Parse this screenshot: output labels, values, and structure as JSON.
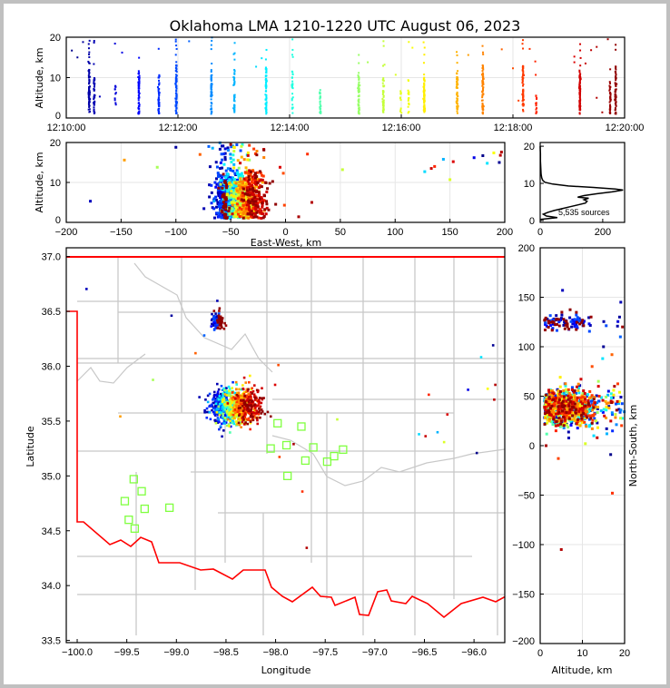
{
  "chart_data": [
    {
      "id": "time_height",
      "type": "scatter",
      "title": "Oklahoma LMA 1210-1220 UTC August 06, 2023",
      "xlabel": "",
      "ylabel": "Altitude, km",
      "xlim_minutes_after_1210": [
        0,
        10
      ],
      "ylim": [
        0,
        20
      ],
      "xticks": [
        "12:10:00",
        "12:12:00",
        "12:14:00",
        "12:16:00",
        "12:18:00",
        "12:20:00"
      ],
      "yticks": [
        "0",
        "10",
        "20"
      ],
      "color_by": "time (jet colormap)",
      "columns_t_alt_lo_alt_hi_count": [
        [
          0.41,
          1,
          12,
          70
        ],
        [
          0.5,
          1,
          10,
          40
        ],
        [
          0.88,
          2,
          8,
          12
        ],
        [
          1.3,
          1,
          12,
          55
        ],
        [
          1.66,
          1,
          11,
          45
        ],
        [
          1.97,
          1,
          14,
          70
        ],
        [
          2.6,
          1,
          11,
          55
        ],
        [
          3.01,
          1,
          12,
          40
        ],
        [
          3.58,
          1,
          13,
          60
        ],
        [
          4.05,
          1,
          12,
          30
        ],
        [
          4.55,
          1,
          7,
          30
        ],
        [
          5.24,
          1,
          11,
          55
        ],
        [
          5.68,
          1,
          10,
          50
        ],
        [
          5.99,
          1,
          7,
          12
        ],
        [
          6.13,
          1,
          7,
          18
        ],
        [
          6.41,
          1,
          11,
          60
        ],
        [
          7.0,
          1,
          11,
          60
        ],
        [
          7.46,
          1,
          13,
          70
        ],
        [
          8.18,
          1,
          13,
          60
        ],
        [
          8.42,
          1,
          6,
          15
        ],
        [
          9.2,
          1,
          12,
          75
        ],
        [
          9.74,
          1,
          9,
          35
        ],
        [
          9.84,
          1,
          13,
          60
        ]
      ]
    },
    {
      "id": "ew_height",
      "type": "scatter",
      "xlabel": "East-West, km",
      "ylabel": "Altitude, km",
      "xlim": [
        -200,
        200
      ],
      "ylim": [
        0,
        20
      ],
      "xticks": [
        "−200",
        "−150",
        "−100",
        "−50",
        "0",
        "50",
        "100",
        "150",
        "200"
      ],
      "yticks": [
        "0",
        "10",
        "20"
      ]
    },
    {
      "id": "altitude_histogram",
      "type": "line",
      "xlim": [
        0,
        270
      ],
      "ylim": [
        -0.5,
        21
      ],
      "xticks": [
        "0",
        "200"
      ],
      "yticks": [
        "0",
        "10",
        "20"
      ],
      "annotation": "5,535 sources",
      "profile_alt_km": [
        0.3,
        0.8,
        1.2,
        1.7,
        2.2,
        2.7,
        3.2,
        3.7,
        4.2,
        4.7,
        5.2,
        5.6,
        6.0,
        6.3,
        6.7,
        7.2,
        7.7,
        8.2,
        8.5,
        8.9,
        9.3,
        9.8,
        10.3,
        10.8,
        11.5,
        12.5,
        14,
        16,
        18,
        20
      ],
      "profile_counts": [
        0,
        55,
        20,
        10,
        25,
        45,
        70,
        95,
        120,
        145,
        150,
        140,
        155,
        120,
        140,
        180,
        230,
        265,
        240,
        170,
        90,
        40,
        15,
        8,
        5,
        3,
        2,
        1,
        1,
        0
      ]
    },
    {
      "id": "plan_view",
      "type": "scatter",
      "xlabel": "Longitude",
      "ylabel": "Latitude",
      "xlim": [
        -100.11,
        -95.69
      ],
      "ylim": [
        33.48,
        37.08
      ],
      "xticks": [
        "−100.0",
        "−99.5",
        "−99.0",
        "−98.5",
        "−98.0",
        "−97.5",
        "−97.0",
        "−96.5",
        "−96.0"
      ],
      "xtick_values": [
        -100,
        -99.5,
        -99,
        -98.5,
        -98,
        -97.5,
        -97,
        -96.5,
        -96
      ],
      "yticks": [
        "33.5",
        "34.0",
        "34.5",
        "35.0",
        "35.5",
        "36.0",
        "36.5",
        "37.0"
      ],
      "ytick_values": [
        33.5,
        34,
        34.5,
        35,
        35.5,
        36,
        36.5,
        37
      ],
      "stations_lon_lat": [
        [
          -97.98,
          35.48
        ],
        [
          -97.74,
          35.45
        ],
        [
          -98.05,
          35.25
        ],
        [
          -97.89,
          35.28
        ],
        [
          -97.62,
          35.26
        ],
        [
          -97.32,
          35.24
        ],
        [
          -97.41,
          35.18
        ],
        [
          -97.7,
          35.14
        ],
        [
          -97.48,
          35.13
        ],
        [
          -97.88,
          35.0
        ],
        [
          -99.43,
          34.97
        ],
        [
          -99.35,
          34.86
        ],
        [
          -99.52,
          34.77
        ],
        [
          -99.32,
          34.7
        ],
        [
          -99.07,
          34.71
        ],
        [
          -99.48,
          34.6
        ],
        [
          -99.42,
          34.52
        ]
      ],
      "station_color": "#80ff40",
      "border_color": "#ff0000",
      "county_color": "#c8c8c8"
    },
    {
      "id": "ns_height",
      "type": "scatter",
      "xlabel": "Altitude, km",
      "ylabel": "North-South, km",
      "xlim": [
        0,
        20
      ],
      "ylim": [
        -200,
        200
      ],
      "xticks": [
        "0",
        "10",
        "20"
      ],
      "yticks": [
        "200",
        "150",
        "100",
        "50",
        "0",
        "−50",
        "−100",
        "−150",
        "−200"
      ]
    }
  ],
  "outliers_t_alt_ew_ns": [
    [
      0.3,
      18.8,
      -100,
      130
    ],
    [
      0.6,
      5.3,
      -178,
      157
    ],
    [
      1.0,
      16.2,
      172,
      55
    ],
    [
      2.2,
      19.0,
      -70,
      110
    ],
    [
      9.1,
      13.8,
      -5,
      60
    ],
    [
      8.3,
      17.1,
      20,
      -48
    ],
    [
      9.5,
      5.0,
      24,
      -105
    ],
    [
      9.6,
      1.4,
      12,
      0
    ],
    [
      7.2,
      15.6,
      -147,
      28
    ],
    [
      5.4,
      13.8,
      -117,
      65
    ],
    [
      5.7,
      13.2,
      52,
      25
    ],
    [
      3.4,
      12.7,
      127,
      10
    ],
    [
      9.3,
      13.5,
      133,
      8
    ],
    [
      8.4,
      14.0,
      136,
      50
    ],
    [
      9.1,
      15.2,
      153,
      30
    ],
    [
      3.0,
      15.8,
      144,
      12
    ],
    [
      0.1,
      16.7,
      180,
      -9
    ],
    [
      3.5,
      14.8,
      184,
      88
    ],
    [
      6.2,
      17.4,
      190,
      56
    ],
    [
      9.4,
      16.8,
      196,
      45
    ],
    [
      9.5,
      17.6,
      197,
      60
    ],
    [
      0.2,
      15.0,
      195,
      100
    ],
    [
      5.9,
      10.7,
      150,
      2
    ],
    [
      8.0,
      12.3,
      -2,
      80
    ],
    [
      8.1,
      4.3,
      -1,
      -13
    ],
    [
      7.8,
      17.0,
      -78,
      92
    ],
    [
      0.5,
      19.1,
      -58,
      145
    ],
    [
      9.7,
      19.5,
      -50,
      120
    ]
  ]
}
